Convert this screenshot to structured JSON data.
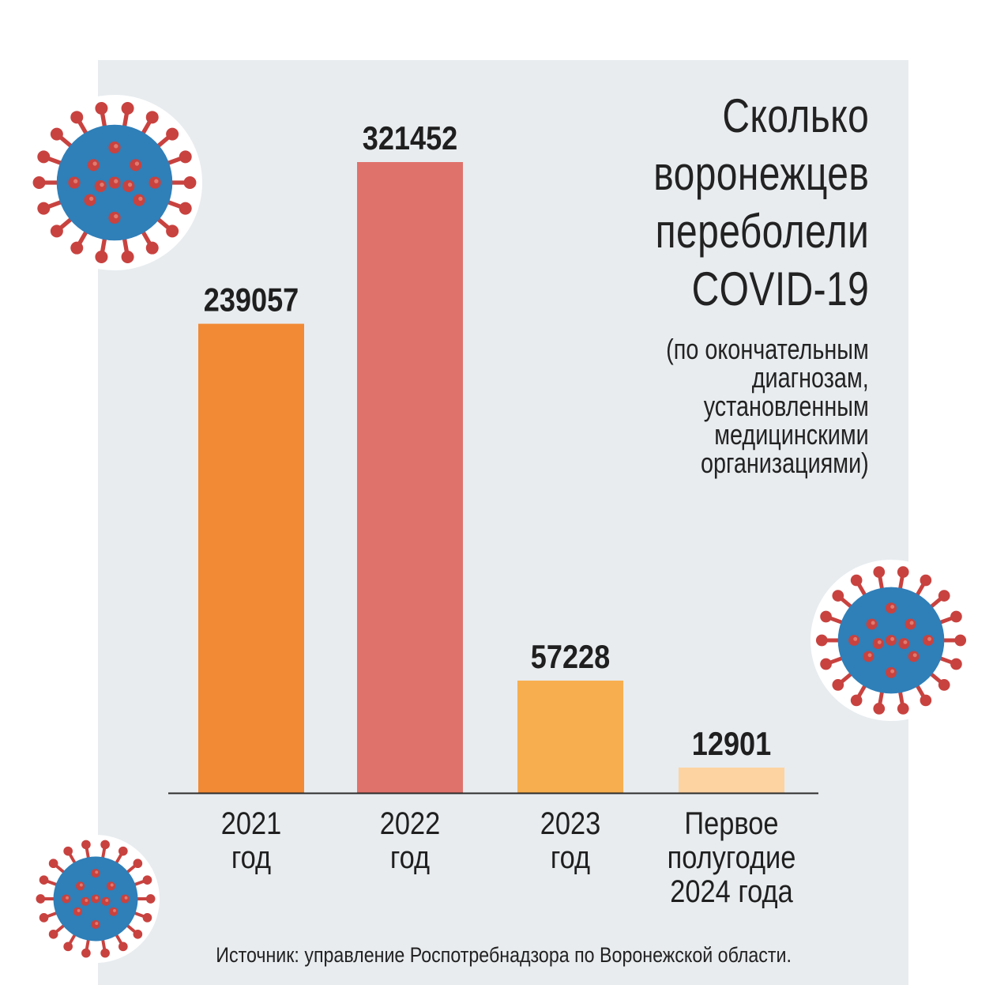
{
  "title": "Сколько\nворонежцев\nпереболели\nCOVID-19",
  "subtitle": "(по окончательным\nдиагнозам,\nустановленным\nмедицинскими\nорганизациями)",
  "source": "Источник: управление Роспотребнадзора по Воронежской области.",
  "colors": {
    "panel_background": "#e8ecef",
    "bar_colors": [
      "#f28a35",
      "#df726b",
      "#f7ae4e",
      "#fdd3a1"
    ],
    "virus_body": "#2f7fb8",
    "virus_spike": "#c8423f"
  },
  "chart_data": {
    "type": "bar",
    "title": "Сколько воронежцев переболели COVID-19",
    "subtitle": "(по окончательным диагнозам, установленным медицинскими организациями)",
    "categories": [
      [
        "2021",
        "год"
      ],
      [
        "2022",
        "год"
      ],
      [
        "2023",
        "год"
      ],
      [
        "Первое",
        "полугодие",
        "2024 года"
      ]
    ],
    "values": [
      239057,
      321452,
      57228,
      12901
    ],
    "value_labels": [
      "239057",
      "321452",
      "57228",
      "12901"
    ],
    "ylim": [
      0,
      321452
    ],
    "grid": false,
    "legend": "none"
  },
  "decorations": {
    "virus_icons": [
      "coronavirus-icon",
      "coronavirus-icon",
      "coronavirus-icon"
    ]
  }
}
